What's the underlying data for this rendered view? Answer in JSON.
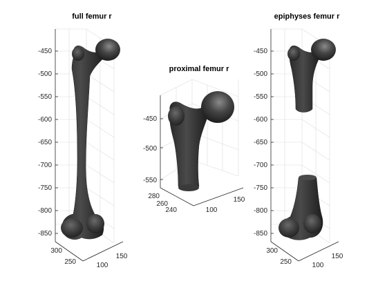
{
  "colors": {
    "bone": "#3d3d3d",
    "bone_dark": "#1e1e1e",
    "bone_highlight": "#8a8a8a",
    "grid": "#dcdcdc",
    "axis": "#262626"
  },
  "panels": [
    {
      "title": "full femur r",
      "z_ticks": [
        "-450",
        "-500",
        "-550",
        "-600",
        "-650",
        "-700",
        "-750",
        "-800",
        "-850"
      ],
      "y_ticks": [
        "300",
        "250"
      ],
      "x_ticks": [
        "100",
        "150"
      ]
    },
    {
      "title": "proximal femur r",
      "z_ticks": [
        "-450",
        "-500",
        "-550"
      ],
      "y_ticks": [
        "280",
        "260",
        "240"
      ],
      "x_ticks": [
        "100",
        "150"
      ]
    },
    {
      "title": "epiphyses femur r",
      "z_ticks": [
        "-450",
        "-500",
        "-550",
        "-600",
        "-650",
        "-700",
        "-750",
        "-800",
        "-850"
      ],
      "y_ticks": [
        "300",
        "250"
      ],
      "x_ticks": [
        "100",
        "150"
      ]
    }
  ]
}
